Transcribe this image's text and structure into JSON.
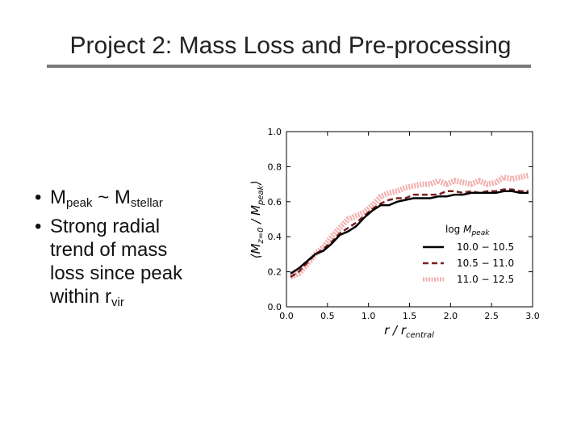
{
  "slide": {
    "title": "Project 2: Mass Loss and Pre-processing"
  },
  "bullets": [
    {
      "marker": "•",
      "parts": [
        [
          "M",
          "peak"
        ],
        [
          " ~ M",
          "stellar"
        ]
      ]
    },
    {
      "marker": "•",
      "lines": [
        "Strong radial",
        "trend of mass",
        "loss since peak"
      ],
      "last_line": [
        "within r",
        "vir"
      ]
    }
  ],
  "chart_data": {
    "type": "line",
    "xlabel": "r / r_central",
    "ylabel": "⟨M_z=0 / M_peak⟩",
    "xlim": [
      0.0,
      3.0
    ],
    "ylim": [
      0.0,
      1.0
    ],
    "x_ticks": [
      "0.0",
      "0.5",
      "1.0",
      "1.5",
      "2.0",
      "2.5",
      "3.0"
    ],
    "y_ticks": [
      "0.0",
      "0.2",
      "0.4",
      "0.6",
      "0.8",
      "1.0"
    ],
    "legend": {
      "title": "log M_peak",
      "placement": "center-right"
    },
    "series": [
      {
        "name": "10.0 − 10.5",
        "color": "#000000",
        "style": "solid",
        "x": [
          0.05,
          0.15,
          0.25,
          0.35,
          0.45,
          0.55,
          0.65,
          0.75,
          0.85,
          0.95,
          1.05,
          1.15,
          1.25,
          1.35,
          1.45,
          1.55,
          1.65,
          1.75,
          1.85,
          1.95,
          2.05,
          2.15,
          2.25,
          2.35,
          2.45,
          2.55,
          2.65,
          2.75,
          2.85,
          2.95
        ],
        "y": [
          0.19,
          0.22,
          0.26,
          0.3,
          0.32,
          0.36,
          0.41,
          0.43,
          0.46,
          0.51,
          0.55,
          0.58,
          0.58,
          0.6,
          0.61,
          0.62,
          0.62,
          0.62,
          0.63,
          0.63,
          0.64,
          0.64,
          0.65,
          0.65,
          0.65,
          0.65,
          0.66,
          0.66,
          0.65,
          0.65
        ]
      },
      {
        "name": "10.5 − 11.0",
        "color": "#7a1f1f",
        "style": "dashed",
        "x": [
          0.05,
          0.15,
          0.25,
          0.35,
          0.45,
          0.55,
          0.65,
          0.75,
          0.85,
          0.95,
          1.05,
          1.15,
          1.25,
          1.35,
          1.45,
          1.55,
          1.65,
          1.75,
          1.85,
          1.95,
          2.05,
          2.15,
          2.25,
          2.35,
          2.45,
          2.55,
          2.65,
          2.75,
          2.85,
          2.95
        ],
        "y": [
          0.17,
          0.2,
          0.25,
          0.3,
          0.33,
          0.37,
          0.42,
          0.45,
          0.48,
          0.52,
          0.56,
          0.59,
          0.61,
          0.62,
          0.62,
          0.64,
          0.64,
          0.64,
          0.64,
          0.66,
          0.66,
          0.65,
          0.66,
          0.65,
          0.66,
          0.66,
          0.67,
          0.67,
          0.66,
          0.66
        ]
      },
      {
        "name": "11.0 − 12.5",
        "color": "#f0a0a0",
        "style": "dotted",
        "x": [
          0.05,
          0.15,
          0.25,
          0.35,
          0.45,
          0.55,
          0.65,
          0.75,
          0.85,
          0.95,
          1.05,
          1.15,
          1.25,
          1.35,
          1.45,
          1.55,
          1.65,
          1.75,
          1.85,
          1.95,
          2.05,
          2.15,
          2.25,
          2.35,
          2.45,
          2.55,
          2.65,
          2.75,
          2.85,
          2.95
        ],
        "y": [
          0.17,
          0.19,
          0.24,
          0.3,
          0.34,
          0.4,
          0.45,
          0.5,
          0.52,
          0.54,
          0.58,
          0.63,
          0.65,
          0.66,
          0.68,
          0.69,
          0.7,
          0.7,
          0.72,
          0.7,
          0.72,
          0.71,
          0.7,
          0.72,
          0.7,
          0.71,
          0.74,
          0.73,
          0.74,
          0.75
        ]
      }
    ]
  }
}
